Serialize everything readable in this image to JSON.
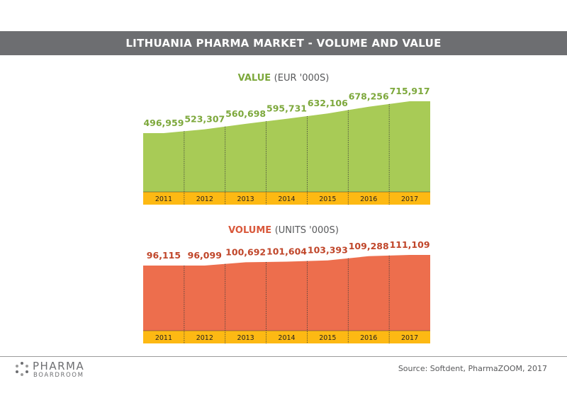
{
  "header": {
    "title": "LITHUANIA PHARMA MARKET - VOLUME AND VALUE"
  },
  "chart_data": [
    {
      "type": "area",
      "title_main": "VALUE",
      "title_unit": "(EUR '000S)",
      "categories": [
        "2011",
        "2012",
        "2013",
        "2014",
        "2015",
        "2016",
        "2017"
      ],
      "values": [
        496959,
        523307,
        560698,
        595731,
        632106,
        678256,
        715917
      ],
      "labels": [
        "496,959",
        "523,307",
        "560,698",
        "595,731",
        "632,106",
        "678,256",
        "715,917"
      ],
      "fill_color": "#a8cb56",
      "label_color": "#7da83c",
      "axis_band_color": "#fdb913"
    },
    {
      "type": "area",
      "title_main": "VOLUME",
      "title_unit": "(UNITS '000S)",
      "categories": [
        "2011",
        "2012",
        "2013",
        "2014",
        "2015",
        "2016",
        "2017"
      ],
      "values": [
        96115,
        96099,
        100692,
        101604,
        103393,
        109288,
        111109
      ],
      "labels": [
        "96,115",
        "96,099",
        "100,692",
        "101,604",
        "103,393",
        "109,288",
        "111,109"
      ],
      "fill_color": "#ed6e4d",
      "label_color": "#c0462a",
      "axis_band_color": "#fdb913"
    }
  ],
  "footer": {
    "logo_line1": "PHARMA",
    "logo_line2": "BOARDROOM",
    "source": "Source: Softdent, PharmaZOOM, 2017"
  }
}
